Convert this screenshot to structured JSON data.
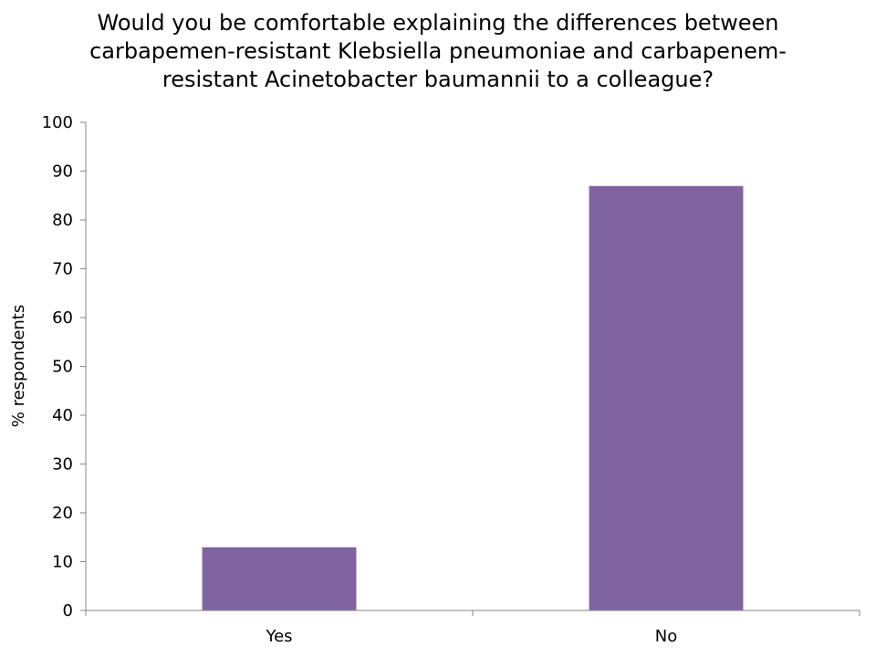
{
  "chart_data": {
    "type": "bar",
    "title": "Would you be comfortable explaining the differences between carbapemen-resistant Klebsiella pneumoniae and carbapenem-resistant Acinetobacter baumannii to a colleague?",
    "categories": [
      "Yes",
      "No"
    ],
    "values": [
      13,
      87
    ],
    "xlabel": "",
    "ylabel": "% respondents",
    "ylim": [
      0,
      100
    ],
    "yticks": [
      "0",
      "10",
      "20",
      "30",
      "40",
      "50",
      "60",
      "70",
      "80",
      "90",
      "100"
    ],
    "grid": false,
    "legend": "none",
    "bar_color": "#8064A2"
  }
}
